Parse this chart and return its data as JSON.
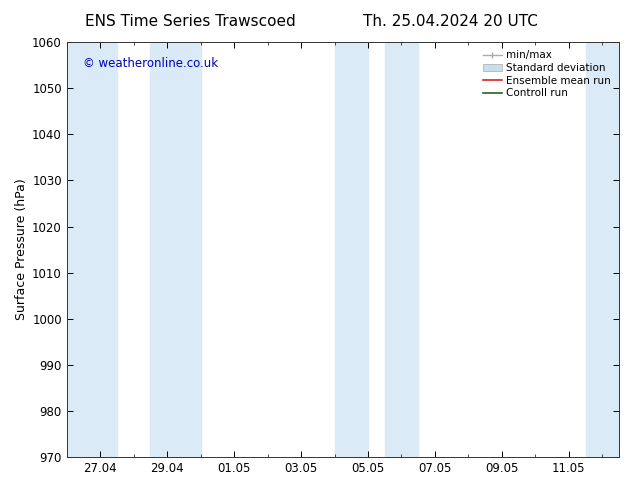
{
  "title_left": "ENS Time Series Trawscoed",
  "title_right": "Th. 25.04.2024 20 UTC",
  "ylabel": "Surface Pressure (hPa)",
  "ylim": [
    970,
    1060
  ],
  "yticks": [
    970,
    980,
    990,
    1000,
    1010,
    1020,
    1030,
    1040,
    1050,
    1060
  ],
  "xtick_labels": [
    "27.04",
    "29.04",
    "01.05",
    "03.05",
    "05.05",
    "07.05",
    "09.05",
    "11.05"
  ],
  "xtick_positions": [
    2,
    4,
    6,
    8,
    10,
    12,
    14,
    16
  ],
  "xlim": [
    1,
    17.5
  ],
  "copyright_text": "© weatheronline.co.uk",
  "copyright_color": "#0000bb",
  "bg_color": "#ffffff",
  "plot_bg_color": "#ffffff",
  "shaded_bands": [
    {
      "x_start": 1.0,
      "x_end": 2.5
    },
    {
      "x_start": 3.5,
      "x_end": 5.0
    },
    {
      "x_start": 9.0,
      "x_end": 10.0
    },
    {
      "x_start": 10.5,
      "x_end": 11.5
    },
    {
      "x_start": 16.5,
      "x_end": 17.5
    }
  ],
  "shaded_color": "#daeaf7",
  "tick_fontsize": 8.5,
  "label_fontsize": 9,
  "title_fontsize": 11
}
